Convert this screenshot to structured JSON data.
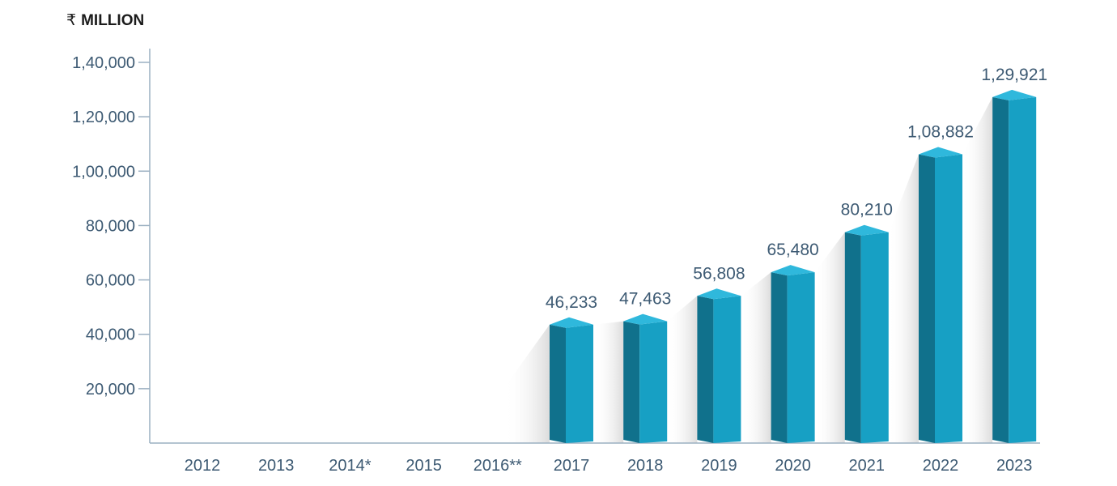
{
  "chart_data": {
    "type": "bar",
    "unit_label": "MILLION",
    "currency_symbol": "₹",
    "categories": [
      "2012",
      "2013",
      "2014*",
      "2015",
      "2016**",
      "2017",
      "2018",
      "2019",
      "2020",
      "2021",
      "2022",
      "2023"
    ],
    "values": [
      null,
      null,
      null,
      null,
      null,
      46233,
      47463,
      56808,
      65480,
      80210,
      108882,
      129921
    ],
    "value_labels": [
      "",
      "",
      "",
      "",
      "",
      "46,233",
      "47,463",
      "56,808",
      "65,480",
      "80,210",
      "1,08,882",
      "1,29,921"
    ],
    "y_ticks": [
      20000,
      40000,
      60000,
      80000,
      100000,
      120000,
      140000
    ],
    "y_tick_labels": [
      "20,000",
      "40,000",
      "60,000",
      "80,000",
      "1,00,000",
      "1,20,000",
      "1,40,000"
    ],
    "ylim": [
      0,
      140000
    ],
    "grid": false,
    "colors": {
      "bar_front": "#17a0c4",
      "bar_side": "#10718c",
      "bar_top": "#2fb8dc",
      "axis": "#9bb0c2",
      "text": "#3d5a73"
    }
  }
}
